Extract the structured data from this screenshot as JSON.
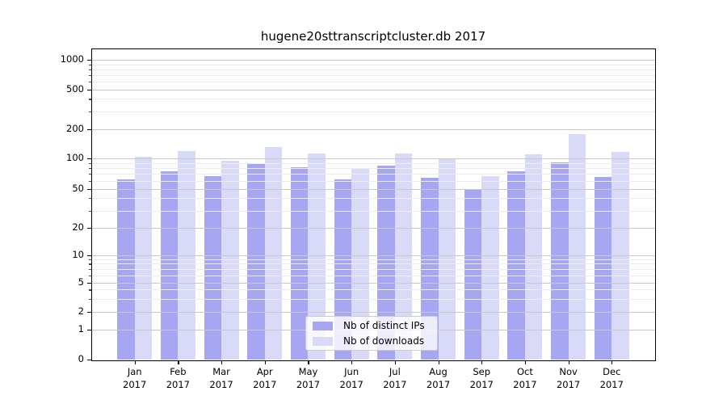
{
  "title": "hugene20sttranscriptcluster.db 2017",
  "chart_data": {
    "type": "bar",
    "title": "hugene20sttranscriptcluster.db 2017",
    "categories": [
      {
        "month": "Jan",
        "year": "2017"
      },
      {
        "month": "Feb",
        "year": "2017"
      },
      {
        "month": "Mar",
        "year": "2017"
      },
      {
        "month": "Apr",
        "year": "2017"
      },
      {
        "month": "May",
        "year": "2017"
      },
      {
        "month": "Jun",
        "year": "2017"
      },
      {
        "month": "Jul",
        "year": "2017"
      },
      {
        "month": "Aug",
        "year": "2017"
      },
      {
        "month": "Sep",
        "year": "2017"
      },
      {
        "month": "Oct",
        "year": "2017"
      },
      {
        "month": "Nov",
        "year": "2017"
      },
      {
        "month": "Dec",
        "year": "2017"
      }
    ],
    "series": [
      {
        "name": "Nb of distinct IPs",
        "color": "#a6a6f2",
        "values": [
          62,
          75,
          66,
          90,
          81,
          62,
          84,
          64,
          50,
          74,
          91,
          65
        ]
      },
      {
        "name": "Nb of downloads",
        "color": "#d9d9f8",
        "values": [
          104,
          119,
          94,
          131,
          113,
          79,
          113,
          100,
          66,
          110,
          178,
          116
        ]
      }
    ],
    "y_scale": "symlog",
    "y_ticks": [
      0,
      1,
      2,
      5,
      10,
      20,
      50,
      100,
      200,
      500,
      1000
    ],
    "y_minor_ticks": [
      3,
      4,
      6,
      7,
      8,
      9,
      30,
      40,
      60,
      70,
      80,
      90,
      300,
      400,
      600,
      700,
      800,
      900
    ],
    "ylim": [
      0,
      1300
    ],
    "xlabel": "",
    "ylabel": "",
    "grid": true,
    "grid_over_bars": true,
    "legend_position": "lower center"
  },
  "colors": {
    "distinct_ips_bar": "#a6a6f2",
    "downloads_bar": "#d9d9f8",
    "grid_major": "#c9c9c9",
    "grid_minor": "#ededed",
    "axis": "#000000",
    "legend_border": "#cccccc"
  }
}
